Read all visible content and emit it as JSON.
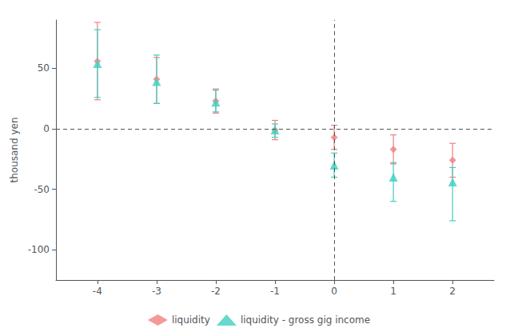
{
  "chart_data": {
    "type": "scatter",
    "x": [
      -4,
      -3,
      -2,
      -1,
      0,
      1,
      2
    ],
    "series": [
      {
        "name": "liquidity",
        "color": "#F08080",
        "marker": "diamond",
        "values": [
          56,
          41,
          23,
          -1,
          -7,
          -17,
          -26
        ],
        "yerr_low": [
          32,
          20,
          10,
          8,
          10,
          12,
          14
        ],
        "yerr_high": [
          32,
          18,
          10,
          8,
          10,
          12,
          14
        ]
      },
      {
        "name": "liquidity - gross gig income",
        "color": "#3ECFC0",
        "marker": "triangle",
        "values": [
          54,
          39,
          22,
          -1,
          -30,
          -40,
          -44
        ],
        "yerr_low": [
          28,
          18,
          8,
          6,
          10,
          20,
          32
        ],
        "yerr_high": [
          28,
          22,
          10,
          5,
          10,
          12,
          12
        ]
      }
    ],
    "ylabel": "thousand yen",
    "xlim": [
      -4.7,
      2.7
    ],
    "ylim": [
      -125,
      90
    ],
    "xticks": [
      -4,
      -3,
      -2,
      -1,
      0,
      1,
      2
    ],
    "yticks": [
      -100,
      -50,
      0,
      50
    ],
    "hlines": [
      0
    ],
    "vlines": [
      0
    ],
    "grid": false,
    "legend": "bottom"
  }
}
